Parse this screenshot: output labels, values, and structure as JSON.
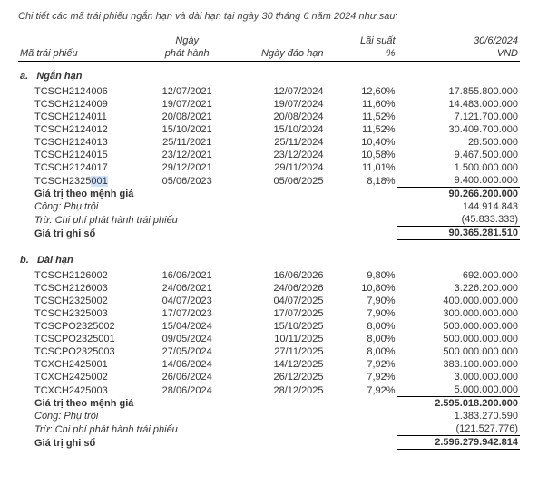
{
  "intro": "Chi tiết các mã trái phiếu ngắn hạn và dài hạn tại ngày 30 tháng 6 năm 2024 như sau:",
  "headers": {
    "code": "Mã trái phiếu",
    "issue1": "Ngày",
    "issue2": "phát hành",
    "maturity": "Ngày đáo hạn",
    "rate1": "Lãi suất",
    "rate2": "%",
    "date": "30/6/2024",
    "currency": "VND"
  },
  "sections": [
    {
      "letter": "a.",
      "title": "Ngắn hạn",
      "rows": [
        {
          "code": "TCSCH2124006",
          "issue": "12/07/2021",
          "maturity": "12/07/2024",
          "rate": "12,60%",
          "amount": "17.855.800.000"
        },
        {
          "code": "TCSCH2124009",
          "issue": "19/07/2021",
          "maturity": "19/07/2024",
          "rate": "11,60%",
          "amount": "14.483.000.000"
        },
        {
          "code": "TCSCH2124011",
          "issue": "20/08/2021",
          "maturity": "20/08/2024",
          "rate": "11,52%",
          "amount": "7.121.700.000"
        },
        {
          "code": "TCSCH2124012",
          "issue": "15/10/2021",
          "maturity": "15/10/2024",
          "rate": "11,52%",
          "amount": "30.409.700.000"
        },
        {
          "code": "TCSCH2124013",
          "issue": "25/11/2021",
          "maturity": "25/11/2024",
          "rate": "10,40%",
          "amount": "28.500.000"
        },
        {
          "code": "TCSCH2124015",
          "issue": "23/12/2021",
          "maturity": "23/12/2024",
          "rate": "10,58%",
          "amount": "9.467.500.000"
        },
        {
          "code": "TCSCH2124017",
          "issue": "29/12/2021",
          "maturity": "29/11/2024",
          "rate": "11,01%",
          "amount": "1.500.000.000"
        },
        {
          "code": "TCSCH2325001",
          "issue": "05/06/2023",
          "maturity": "05/06/2025",
          "rate": "8,18%",
          "amount": "9.400.000.000",
          "hl": true
        }
      ],
      "summary": [
        {
          "label": "Giá trị theo mệnh giá",
          "amount": "90.266.200.000",
          "bold": true,
          "top": true
        },
        {
          "label": "Cộng: Phụ trội",
          "amount": "144.914.843",
          "indent": true
        },
        {
          "label": "Trừ: Chi phí phát hành trái phiếu",
          "amount": "(45.833.333)",
          "indent": true
        },
        {
          "label": "Giá trị ghi sổ",
          "amount": "90.365.281.510",
          "bold": true,
          "topbottom": true
        }
      ]
    },
    {
      "letter": "b.",
      "title": "Dài hạn",
      "rows": [
        {
          "code": "TCSCH2126002",
          "issue": "16/06/2021",
          "maturity": "16/06/2026",
          "rate": "9,80%",
          "amount": "692.000.000"
        },
        {
          "code": "TCSCH2126003",
          "issue": "24/06/2021",
          "maturity": "24/06/2026",
          "rate": "10,80%",
          "amount": "3.226.200.000"
        },
        {
          "code": "TCSCH2325002",
          "issue": "04/07/2023",
          "maturity": "04/07/2025",
          "rate": "7,90%",
          "amount": "400.000.000.000"
        },
        {
          "code": "TCSCH2325003",
          "issue": "17/07/2023",
          "maturity": "17/07/2025",
          "rate": "7,90%",
          "amount": "300.000.000.000"
        },
        {
          "code": "TCSCPO2325002",
          "issue": "15/04/2024",
          "maturity": "15/10/2025",
          "rate": "8,00%",
          "amount": "500.000.000.000"
        },
        {
          "code": "TCSCPO2325001",
          "issue": "09/05/2024",
          "maturity": "10/11/2025",
          "rate": "8,00%",
          "amount": "500.000.000.000"
        },
        {
          "code": "TCSCPO2325003",
          "issue": "27/05/2024",
          "maturity": "27/11/2025",
          "rate": "8,00%",
          "amount": "500.000.000.000"
        },
        {
          "code": "TCXCH2425001",
          "issue": "14/06/2024",
          "maturity": "14/12/2025",
          "rate": "7,92%",
          "amount": "383.100.000.000"
        },
        {
          "code": "TCXCH2425002",
          "issue": "26/06/2024",
          "maturity": "26/12/2025",
          "rate": "7,92%",
          "amount": "3.000.000.000"
        },
        {
          "code": "TCXCH2425003",
          "issue": "28/06/2024",
          "maturity": "28/12/2025",
          "rate": "7,92%",
          "amount": "5.000.000.000"
        }
      ],
      "summary": [
        {
          "label": "Giá trị theo mệnh giá",
          "amount": "2.595.018.200.000",
          "bold": true,
          "top": true
        },
        {
          "label": "Cộng: Phụ trội",
          "amount": "1.383.270.590",
          "indent": true
        },
        {
          "label": "Trừ: Chi phí phát hành trái phiếu",
          "amount": "(121.527.776)",
          "indent": true
        },
        {
          "label": "Giá trị ghi sổ",
          "amount": "2.596.279.942.814",
          "bold": true,
          "topbottom": true
        }
      ]
    }
  ]
}
